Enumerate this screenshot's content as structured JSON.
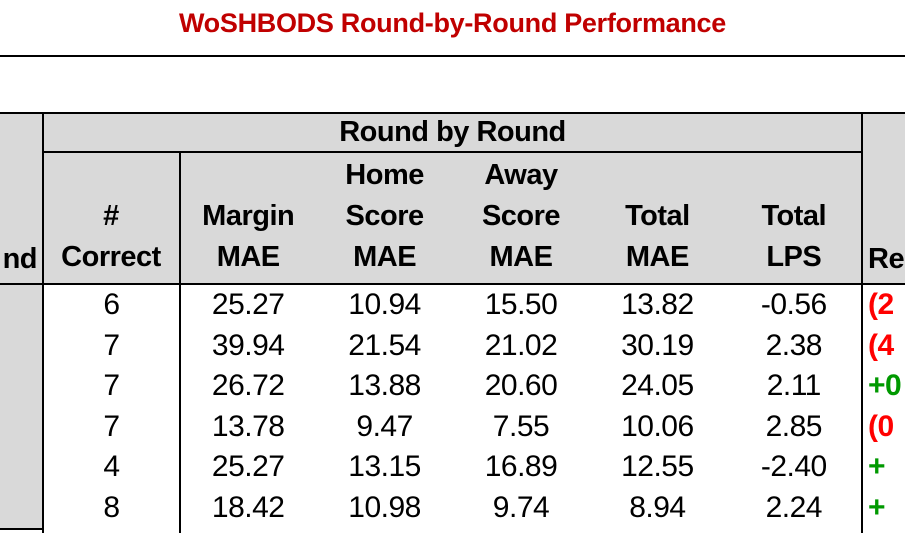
{
  "title": "WoSHBODS Round-by-Round Performance",
  "colors": {
    "title_red": "#C00000",
    "negative_red": "#FF0000",
    "positive_green": "#009900",
    "header_gray": "#D9D9D9",
    "border_black": "#000000"
  },
  "table": {
    "group_header": "Round by Round",
    "left_column_header_visible": "nd",
    "right_column_header_visible": "Re",
    "correct_header_lines": [
      "#",
      "Correct"
    ],
    "sub_columns": [
      [
        "Margin",
        "MAE"
      ],
      [
        "Home",
        "Score",
        "MAE"
      ],
      [
        "Away",
        "Score",
        "MAE"
      ],
      [
        "Total",
        "MAE"
      ],
      [
        "Total",
        "LPS"
      ]
    ],
    "rows": [
      {
        "correct": "6",
        "margin_mae": "25.27",
        "home_score_mae": "10.94",
        "away_score_mae": "15.50",
        "total_mae": "13.82",
        "total_lps": "-0.56",
        "result_fragment": "(2",
        "result_color": "red"
      },
      {
        "correct": "7",
        "margin_mae": "39.94",
        "home_score_mae": "21.54",
        "away_score_mae": "21.02",
        "total_mae": "30.19",
        "total_lps": "2.38",
        "result_fragment": "(4",
        "result_color": "red"
      },
      {
        "correct": "7",
        "margin_mae": "26.72",
        "home_score_mae": "13.88",
        "away_score_mae": "20.60",
        "total_mae": "24.05",
        "total_lps": "2.11",
        "result_fragment": "+0",
        "result_color": "green"
      },
      {
        "correct": "7",
        "margin_mae": "13.78",
        "home_score_mae": "9.47",
        "away_score_mae": "7.55",
        "total_mae": "10.06",
        "total_lps": "2.85",
        "result_fragment": "(0",
        "result_color": "red"
      },
      {
        "correct": "4",
        "margin_mae": "25.27",
        "home_score_mae": "13.15",
        "away_score_mae": "16.89",
        "total_mae": "12.55",
        "total_lps": "-2.40",
        "result_fragment": "+",
        "result_color": "green"
      },
      {
        "correct": "8",
        "margin_mae": "18.42",
        "home_score_mae": "10.98",
        "away_score_mae": "9.74",
        "total_mae": "8.94",
        "total_lps": "2.24",
        "result_fragment": "+",
        "result_color": "green"
      }
    ]
  },
  "chart_data": {
    "type": "table",
    "title": "WoSHBODS Round-by-Round Performance",
    "group_header": "Round by Round",
    "columns": [
      "# Correct",
      "Margin MAE",
      "Home Score MAE",
      "Away Score MAE",
      "Total MAE",
      "Total LPS",
      "Re… (clipped result column)"
    ],
    "rows": [
      [
        6,
        25.27,
        10.94,
        15.5,
        13.82,
        -0.56,
        "(2…"
      ],
      [
        7,
        39.94,
        21.54,
        21.02,
        30.19,
        2.38,
        "(4…"
      ],
      [
        7,
        26.72,
        13.88,
        20.6,
        24.05,
        2.11,
        "+0…"
      ],
      [
        7,
        13.78,
        9.47,
        7.55,
        10.06,
        2.85,
        "(0…"
      ],
      [
        4,
        25.27,
        13.15,
        16.89,
        12.55,
        -2.4,
        "+…"
      ],
      [
        8,
        18.42,
        10.98,
        9.74,
        8.94,
        2.24,
        "+…"
      ]
    ],
    "notes": "Left 'Round' label column and right result column are clipped at the image edges; negative results shown in red parentheses, positive results in green with '+'."
  }
}
